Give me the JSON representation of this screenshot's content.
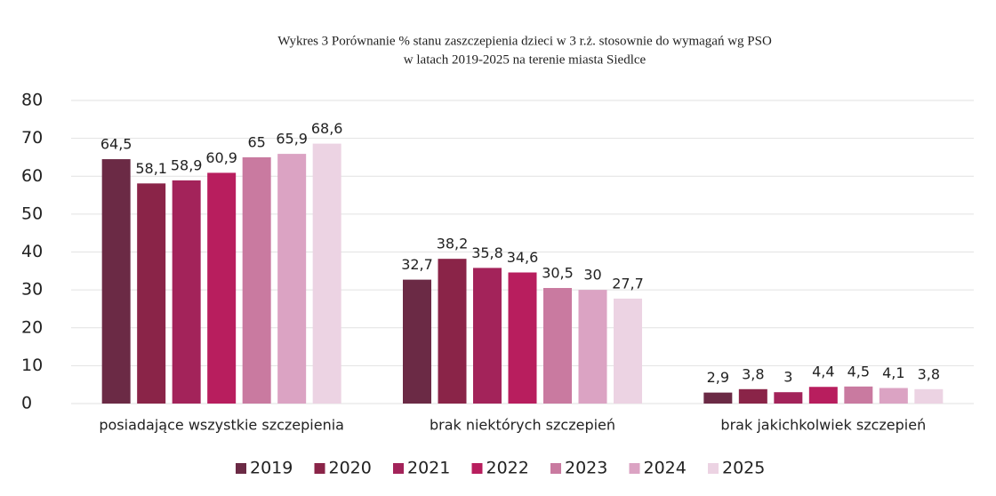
{
  "chart_data": {
    "type": "bar",
    "title": "Wykres 3 Porównanie % stanu zaszczepienia dzieci w 3 r.ż. stosownie do wymagań wg PSO",
    "subtitle": "w latach 2019-2025 na terenie miasta Siedlce",
    "categories": [
      "posiadające wszystkie szczepienia",
      "brak niektórych szczepień",
      "brak jakichkolwiek szczepień"
    ],
    "series": [
      {
        "name": "2019",
        "color": "#6b2a45",
        "values": [
          64.5,
          32.7,
          2.9
        ],
        "value_labels": [
          "64,5",
          "32,7",
          "2,9"
        ]
      },
      {
        "name": "2020",
        "color": "#8a2448",
        "values": [
          58.1,
          38.2,
          3.8
        ],
        "value_labels": [
          "58,1",
          "38,2",
          "3,8"
        ]
      },
      {
        "name": "2021",
        "color": "#a3235a",
        "values": [
          58.9,
          35.8,
          3
        ],
        "value_labels": [
          "58,9",
          "35,8",
          "3"
        ]
      },
      {
        "name": "2022",
        "color": "#b81e5e",
        "values": [
          60.9,
          34.6,
          4.4
        ],
        "value_labels": [
          "60,9",
          "34,6",
          "4,4"
        ]
      },
      {
        "name": "2023",
        "color": "#c97aa0",
        "values": [
          65,
          30.5,
          4.5
        ],
        "value_labels": [
          "65",
          "30,5",
          "4,5"
        ]
      },
      {
        "name": "2024",
        "color": "#dba3c3",
        "values": [
          65.9,
          30,
          4.1
        ],
        "value_labels": [
          "65,9",
          "30",
          "4,1"
        ]
      },
      {
        "name": "2025",
        "color": "#ecd3e3",
        "values": [
          68.6,
          27.7,
          3.8
        ],
        "value_labels": [
          "68,6",
          "27,7",
          "3,8"
        ]
      }
    ],
    "ylim": [
      0,
      80
    ],
    "yticks": [
      0,
      10,
      20,
      30,
      40,
      50,
      60,
      70,
      80
    ],
    "grid": true,
    "legend": "bottom"
  }
}
